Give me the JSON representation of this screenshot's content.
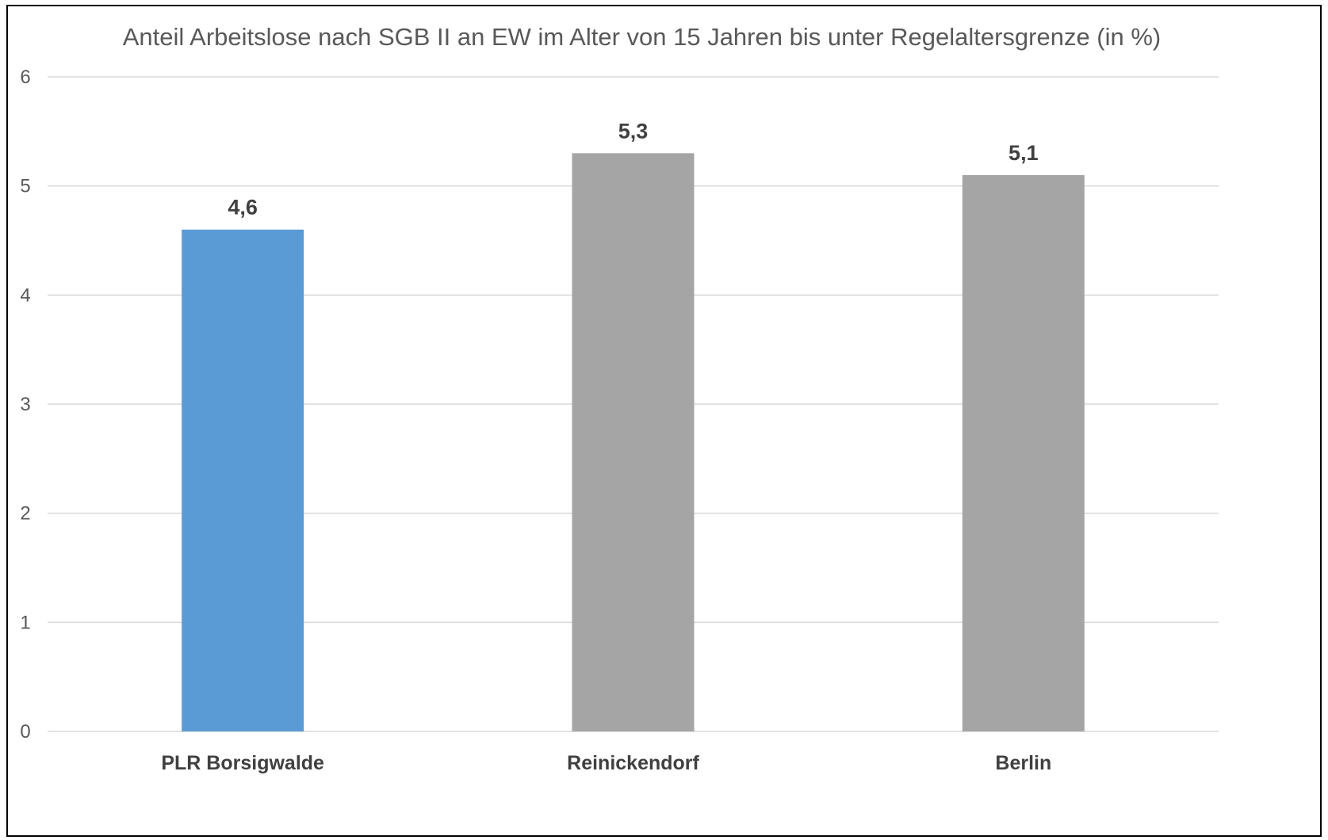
{
  "chart_data": {
    "type": "bar",
    "title": "Anteil Arbeitslose nach SGB II an EW im Alter von 15 Jahren bis unter Regelaltersgrenze (in %)",
    "xlabel": "",
    "ylabel": "",
    "categories": [
      "PLR Borsigwalde",
      "Reinickendorf",
      "Berlin"
    ],
    "values": [
      4.6,
      5.3,
      5.1
    ],
    "data_labels": [
      "4,6",
      "5,3",
      "5,1"
    ],
    "bar_colors": [
      "#5b9bd5",
      "#a5a5a5",
      "#a5a5a5"
    ],
    "ylim": [
      0,
      6
    ],
    "yticks": [
      "0",
      "1",
      "2",
      "3",
      "4",
      "5",
      "6"
    ],
    "grid": true,
    "legend": "none"
  }
}
